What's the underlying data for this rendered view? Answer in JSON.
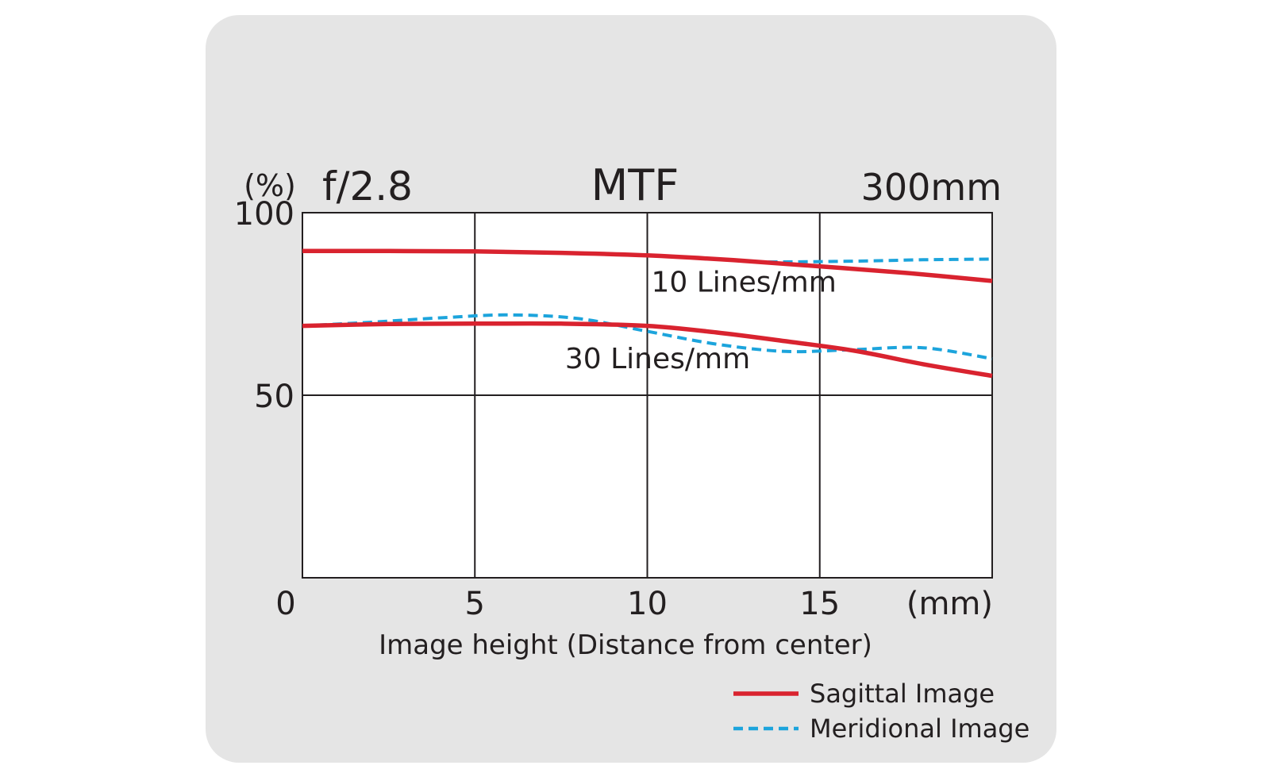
{
  "chart_data": {
    "type": "line",
    "title": "MTF",
    "aperture": "f/2.8",
    "focal_length": "300mm",
    "ylabel": "(%)",
    "xunit": "(mm)",
    "xlabel": "Image height (Distance from center)",
    "xlim": [
      0,
      20
    ],
    "ylim": [
      0,
      100
    ],
    "x_ticks": [
      0,
      5,
      10,
      15
    ],
    "x_tick_labels": [
      "0",
      "5",
      "10",
      "15"
    ],
    "y_ticks": [
      50,
      100
    ],
    "y_tick_labels": [
      "50",
      "100"
    ],
    "grid": true,
    "legend_position": "bottom-right",
    "annotations": [
      {
        "text": "10 Lines/mm",
        "x": 12.8,
        "y": 81
      },
      {
        "text": "30 Lines/mm",
        "x": 10.3,
        "y": 60
      }
    ],
    "series": [
      {
        "name": "Sagittal Image",
        "frequency": "10 Lines/mm",
        "style": "solid",
        "color": "#d9232f",
        "x": [
          0,
          2.5,
          5,
          7.5,
          10,
          12.5,
          15,
          17.5,
          20
        ],
        "y": [
          89.5,
          89.5,
          89.4,
          89.0,
          88.3,
          87.0,
          85.3,
          83.5,
          81.3
        ]
      },
      {
        "name": "Meridional Image",
        "frequency": "10 Lines/mm",
        "style": "dashed",
        "color": "#1ca4dc",
        "x": [
          13.5,
          15,
          16.5,
          18,
          20
        ],
        "y": [
          86.5,
          86.6,
          86.8,
          87.1,
          87.3
        ]
      },
      {
        "name": "Sagittal Image",
        "frequency": "30 Lines/mm",
        "style": "solid",
        "color": "#d9232f",
        "x": [
          0,
          2.5,
          5,
          7.5,
          10,
          12,
          14,
          16,
          18,
          20
        ],
        "y": [
          69.0,
          69.5,
          69.6,
          69.6,
          69.0,
          67.2,
          64.8,
          62.2,
          58.5,
          55.3
        ]
      },
      {
        "name": "Meridional Image",
        "frequency": "30 Lines/mm",
        "style": "dashed",
        "color": "#1ca4dc",
        "x": [
          0,
          2,
          4,
          6,
          8,
          10,
          12,
          14,
          16,
          18,
          20
        ],
        "y": [
          69.0,
          70.0,
          71.2,
          72.0,
          71.0,
          67.5,
          64.0,
          62.0,
          62.5,
          63.0,
          60.0
        ]
      }
    ]
  }
}
